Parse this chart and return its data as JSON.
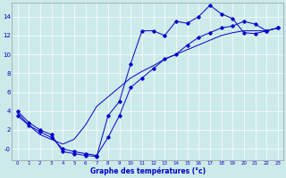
{
  "title": "",
  "xlabel": "Graphe des températures (°c)",
  "background_color": "#cceaea",
  "line_color": "#0000cc",
  "x_hours": [
    0,
    1,
    2,
    3,
    4,
    5,
    6,
    7,
    8,
    9,
    10,
    11,
    12,
    13,
    14,
    15,
    16,
    17,
    18,
    19,
    20,
    21,
    22,
    23
  ],
  "line1_y": [
    4.0,
    2.8,
    2.0,
    1.5,
    -0.3,
    -0.5,
    -0.7,
    -0.8,
    3.5,
    5.0,
    9.0,
    12.5,
    12.5,
    12.0,
    13.5,
    13.3,
    14.0,
    15.2,
    14.3,
    13.8,
    12.3,
    12.2,
    12.5,
    12.8
  ],
  "line2_y": [
    3.5,
    2.5,
    1.8,
    1.2,
    0.0,
    -0.3,
    -0.5,
    -0.7,
    1.2,
    3.5,
    6.5,
    7.5,
    8.5,
    9.5,
    10.0,
    11.0,
    11.8,
    12.3,
    12.8,
    13.0,
    13.5,
    13.2,
    12.5,
    12.8
  ],
  "line3_y": [
    3.8,
    2.5,
    1.5,
    1.0,
    0.5,
    1.0,
    2.5,
    4.5,
    5.5,
    6.5,
    7.5,
    8.2,
    8.8,
    9.5,
    10.0,
    10.5,
    11.0,
    11.5,
    12.0,
    12.3,
    12.5,
    12.5,
    12.5,
    12.8
  ],
  "xlim": [
    -0.5,
    23.5
  ],
  "ylim": [
    -1.2,
    15.5
  ],
  "yticks": [
    0,
    2,
    4,
    6,
    8,
    10,
    12,
    14
  ],
  "ytick_labels": [
    "-0",
    "2",
    "4",
    "6",
    "8",
    "10",
    "12",
    "14"
  ],
  "xticks": [
    0,
    1,
    2,
    3,
    4,
    5,
    6,
    7,
    8,
    9,
    10,
    11,
    12,
    13,
    14,
    15,
    16,
    17,
    18,
    19,
    20,
    21,
    22,
    23
  ]
}
